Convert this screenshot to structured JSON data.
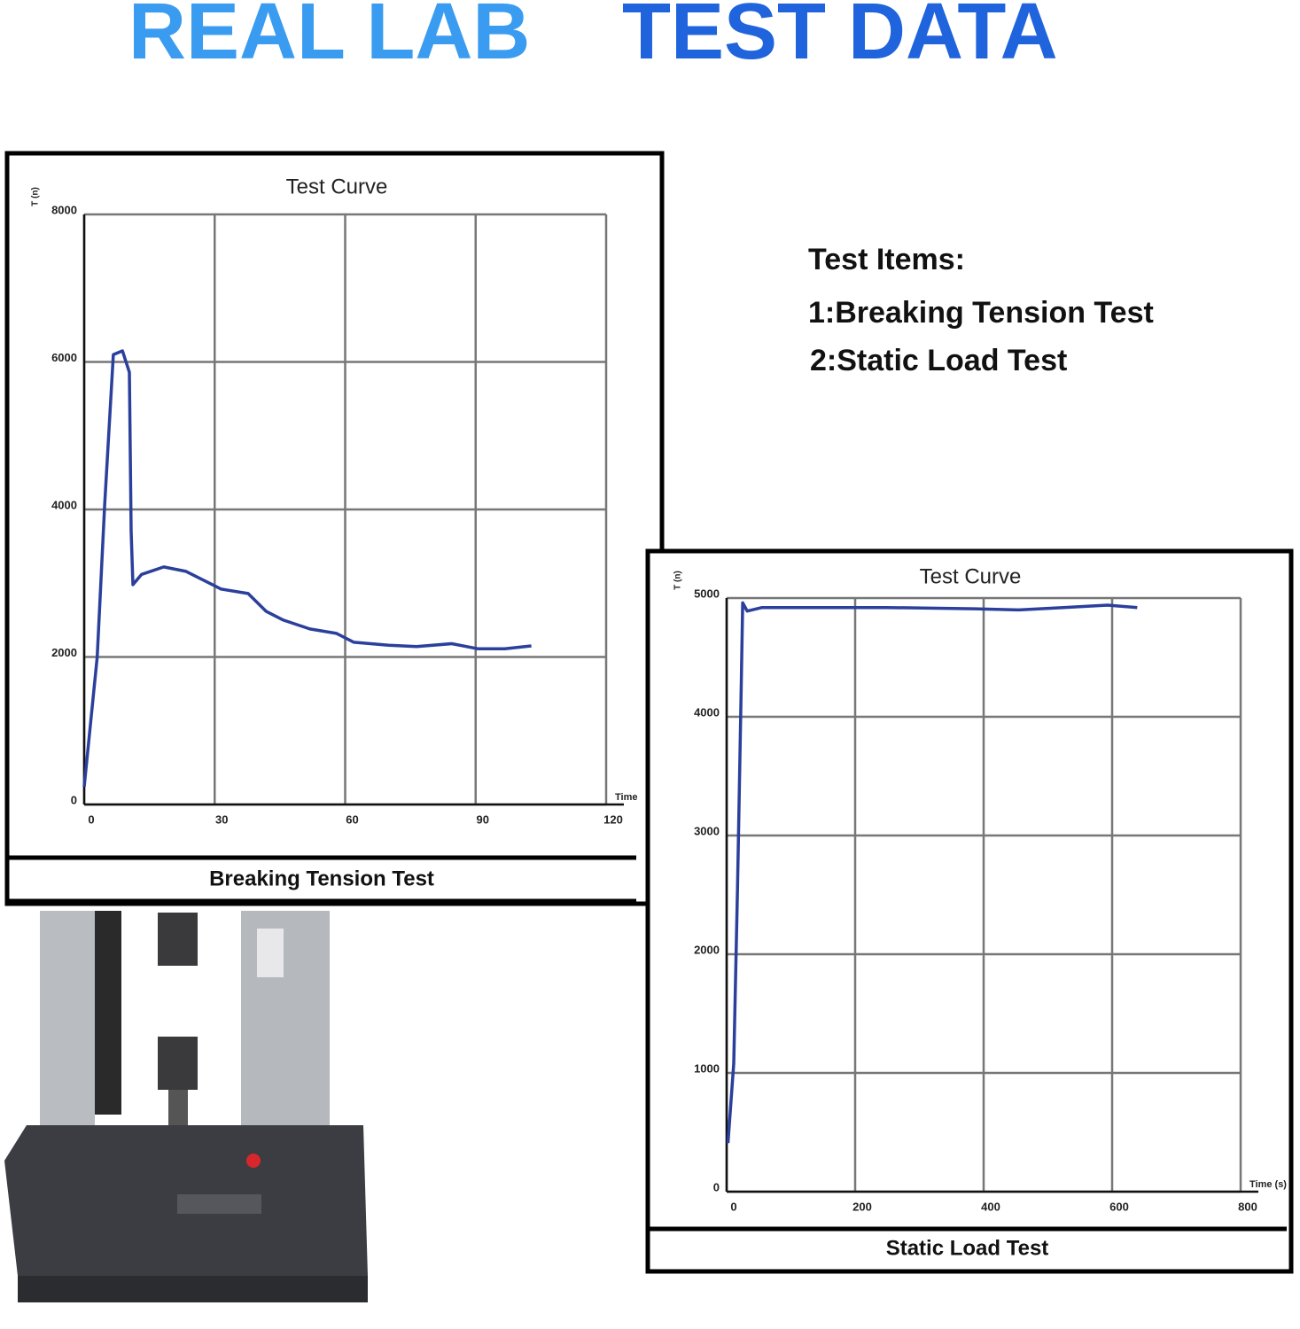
{
  "title_parts": [
    "REAL LAB",
    "TEST DATA"
  ],
  "test_items": {
    "heading": "Test Items:",
    "items": [
      "1:Breaking Tension Test",
      "2:Static Load Test"
    ]
  },
  "chart_data": [
    {
      "type": "line",
      "title": "Test Curve",
      "caption": "Breaking Tension Test",
      "y_label": "T (n)",
      "x_label": "Time",
      "xlim": [
        0,
        120
      ],
      "xticks": [
        0,
        30,
        60,
        90,
        120
      ],
      "ylim": [
        0,
        8000
      ],
      "yticks": [
        0,
        2000,
        4000,
        6000,
        8000
      ],
      "grid": true,
      "series": [
        {
          "color": "#2b3f9c",
          "x": [
            0,
            3,
            4.7,
            6.7,
            8.8,
            10.4,
            10.8,
            11.2,
            13.2,
            18.3,
            23.4,
            29.5,
            31.5,
            37.7,
            41.8,
            45.8,
            51.9,
            58,
            62,
            70,
            76.4,
            84.5,
            90.6,
            96.7,
            102.8
          ],
          "values": [
            240,
            2000,
            4060,
            6100,
            6150,
            5860,
            3700,
            2980,
            3120,
            3220,
            3160,
            2980,
            2920,
            2860,
            2620,
            2500,
            2380,
            2320,
            2200,
            2160,
            2140,
            2180,
            2110,
            2110,
            2150
          ]
        }
      ]
    },
    {
      "type": "line",
      "title": "Test Curve",
      "caption": "Static Load Test",
      "y_label": "T (n)",
      "x_label": "Time (s)",
      "xlim": [
        0,
        800
      ],
      "xticks": [
        0,
        200,
        400,
        600,
        800
      ],
      "ylim": [
        0,
        5000
      ],
      "yticks": [
        0,
        1000,
        2000,
        3000,
        4000,
        5000
      ],
      "grid": true,
      "series": [
        {
          "color": "#2b3f9c",
          "x": [
            2,
            11,
            17,
            22,
            25,
            32,
            55,
            179,
            248,
            386,
            455,
            524,
            593,
            639
          ],
          "values": [
            410,
            1080,
            2575,
            4070,
            4960,
            4890,
            4920,
            4920,
            4920,
            4910,
            4900,
            4920,
            4940,
            4920
          ]
        }
      ]
    }
  ]
}
